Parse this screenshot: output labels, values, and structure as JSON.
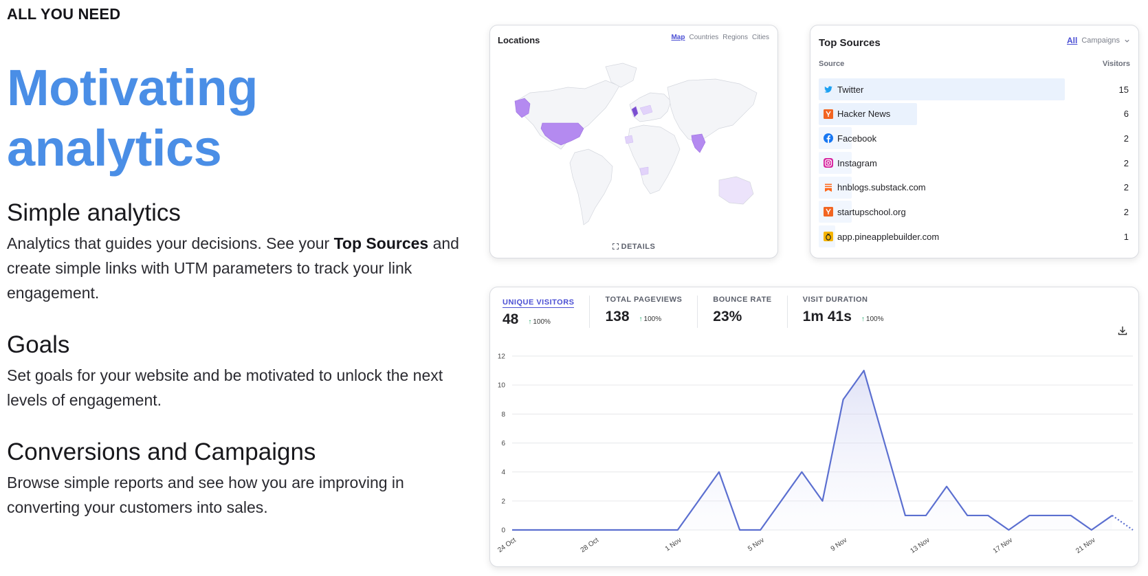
{
  "eyebrow": "ALL YOU NEED",
  "hero": {
    "line1": "Motivating",
    "line2": "analytics"
  },
  "features": [
    {
      "title": "Simple analytics",
      "text_a": "Analytics that guides your decisions. See your ",
      "text_bold": "Top Sources",
      "text_b": " and create simple links with UTM parameters to track your link engagement."
    },
    {
      "title": "Goals",
      "text": "Set goals for your website and be motivated to unlock the next levels of engagement."
    },
    {
      "title": "Conversions and Campaigns",
      "text": "Browse simple reports and see how you are improving in converting your customers into sales."
    }
  ],
  "locations": {
    "title": "Locations",
    "tabs": [
      "Map",
      "Countries",
      "Regions",
      "Cities"
    ],
    "active_tab": "Map",
    "details_label": "DETAILS",
    "highlight_color": "#b48af0"
  },
  "top_sources": {
    "title": "Top Sources",
    "tabs": {
      "all": "All",
      "campaigns": "Campaigns"
    },
    "col_source": "Source",
    "col_visitors": "Visitors",
    "rows": [
      {
        "name": "Twitter",
        "value": "15",
        "icon": "twitter-icon",
        "share": 1.0
      },
      {
        "name": "Hacker News",
        "value": "6",
        "icon": "hacker-news-icon",
        "share": 0.4
      },
      {
        "name": "Facebook",
        "value": "2",
        "icon": "facebook-icon",
        "share": 0.133
      },
      {
        "name": "Instagram",
        "value": "2",
        "icon": "instagram-icon",
        "share": 0.133
      },
      {
        "name": "hnblogs.substack.com",
        "value": "2",
        "icon": "substack-icon",
        "share": 0.133
      },
      {
        "name": "startupschool.org",
        "value": "2",
        "icon": "hacker-news-icon",
        "share": 0.133
      },
      {
        "name": "app.pineapplebuilder.com",
        "value": "1",
        "icon": "pineapple-icon",
        "share": 0.066
      }
    ]
  },
  "stats": [
    {
      "label": "UNIQUE VISITORS",
      "value": "48",
      "delta": "100%",
      "active": true
    },
    {
      "label": "TOTAL PAGEVIEWS",
      "value": "138",
      "delta": "100%",
      "active": false
    },
    {
      "label": "BOUNCE RATE",
      "value": "23%",
      "delta": "",
      "active": false
    },
    {
      "label": "VISIT DURATION",
      "value": "1m 41s",
      "delta": "100%",
      "active": false
    }
  ],
  "chart_data": {
    "type": "line",
    "x": [
      "24 Oct",
      "25 Oct",
      "26 Oct",
      "27 Oct",
      "28 Oct",
      "29 Oct",
      "30 Oct",
      "31 Oct",
      "1 Nov",
      "2 Nov",
      "3 Nov",
      "4 Nov",
      "5 Nov",
      "6 Nov",
      "7 Nov",
      "8 Nov",
      "9 Nov",
      "10 Nov",
      "11 Nov",
      "12 Nov",
      "13 Nov",
      "14 Nov",
      "15 Nov",
      "16 Nov",
      "17 Nov",
      "18 Nov",
      "19 Nov",
      "20 Nov",
      "21 Nov",
      "22 Nov",
      "23 Nov"
    ],
    "values": [
      0,
      0,
      0,
      0,
      0,
      0,
      0,
      0,
      0,
      2,
      4,
      0,
      0,
      2,
      4,
      2,
      9,
      11,
      6,
      1,
      1,
      3,
      1,
      1,
      0,
      1,
      1,
      1,
      0,
      1,
      0
    ],
    "x_tick_labels": [
      "24 Oct",
      "28 Oct",
      "1 Nov",
      "5 Nov",
      "9 Nov",
      "13 Nov",
      "17 Nov",
      "21 Nov"
    ],
    "y_ticks": [
      0,
      2,
      4,
      6,
      8,
      10,
      12
    ],
    "ylim": [
      0,
      12
    ],
    "line_color": "#5b6fd0",
    "last_segment_dashed": true
  }
}
